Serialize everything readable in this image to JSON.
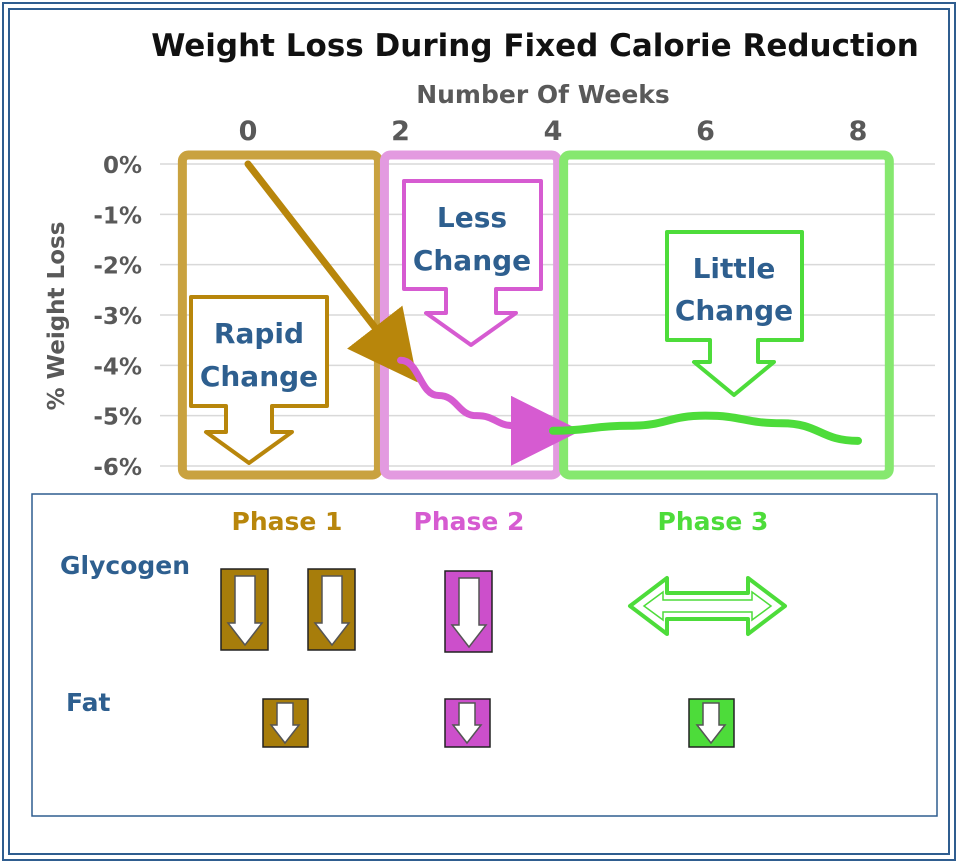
{
  "chart_data": {
    "type": "line",
    "title": "Weight Loss During Fixed Calorie Reduction",
    "xlabel": "Number Of Weeks",
    "ylabel": "% Weight Loss",
    "x_ticks": [
      "0",
      "2",
      "4",
      "6",
      "8"
    ],
    "y_ticks": [
      "0%",
      "-1%",
      "-2%",
      "-3%",
      "-4%",
      "-5%",
      "-6%"
    ],
    "xlim": [
      0,
      8
    ],
    "ylim": [
      -6,
      0
    ],
    "x_axis_position": "top",
    "grid": "horizontal",
    "series": [
      {
        "phase": "Phase 1",
        "color": "#b8860b",
        "x": [
          0,
          2
        ],
        "y": [
          0,
          -3.9
        ]
      },
      {
        "phase": "Phase 2",
        "color": "#d65bd1",
        "x": [
          2,
          2.5,
          3,
          3.5,
          4
        ],
        "y": [
          -3.9,
          -4.6,
          -5.0,
          -5.2,
          -5.3
        ]
      },
      {
        "phase": "Phase 3",
        "color": "#4ddc3a",
        "x": [
          4,
          5,
          6,
          7,
          8
        ],
        "y": [
          -5.3,
          -5.2,
          -5.0,
          -5.15,
          -5.5
        ]
      }
    ],
    "phase_boxes": [
      {
        "label": "Rapid Change",
        "from_week": -0.9,
        "to_week": 1.75,
        "color": "#c9a23f"
      },
      {
        "label": "Less Change",
        "from_week": 1.75,
        "to_week": 4.1,
        "color": "#e39ae0"
      },
      {
        "label": "Little Change",
        "from_week": 4.1,
        "to_week": 8.45,
        "color": "#86e86f"
      }
    ],
    "callouts": [
      {
        "line1": "Rapid",
        "line2": "Change",
        "color": "#b8860b"
      },
      {
        "line1": "Less",
        "line2": "Change",
        "color": "#d65bd1"
      },
      {
        "line1": "Little",
        "line2": "Change",
        "color": "#4ddc3a"
      }
    ]
  },
  "phases": [
    {
      "label": "Phase 1",
      "color": "#b8860b"
    },
    {
      "label": "Phase 2",
      "color": "#d65bd1"
    },
    {
      "label": "Phase 3",
      "color": "#4ddc3a"
    }
  ],
  "table_rows": [
    {
      "label": "Glycogen",
      "indicators": [
        "down-large",
        "down-large",
        "down-large",
        "steady"
      ]
    },
    {
      "label": "Fat",
      "indicators": [
        "down",
        "down",
        "down"
      ]
    }
  ],
  "colors": {
    "frame": "#2f5d8f",
    "text_blue": "#2e5f8f",
    "axis_gray": "#595959"
  }
}
